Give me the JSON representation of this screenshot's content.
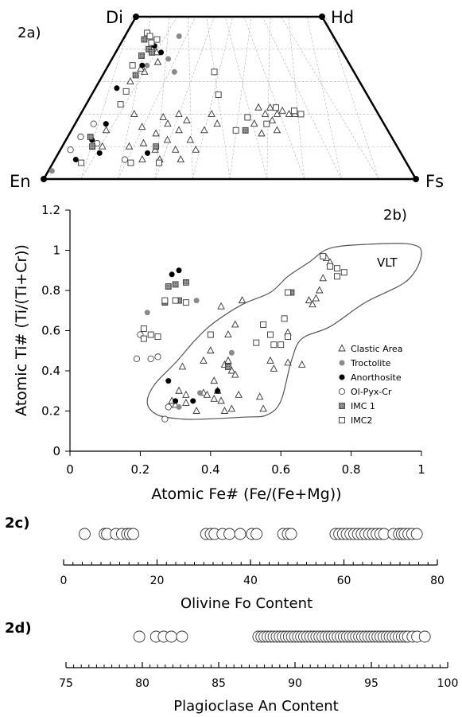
{
  "panel_a": {
    "label": "2a)",
    "vertices": {
      "top_left": "Di",
      "top_right": "Hd",
      "bottom_left": "En",
      "bottom_right": "Fs"
    }
  },
  "panel_b": {
    "label": "2b)",
    "region_label": "VLT"
  },
  "panel_c": {
    "label": "2c)"
  },
  "panel_d": {
    "label": "2d)"
  },
  "chart_data": [
    {
      "type": "scatter",
      "panel": "2a",
      "subtype": "pyroxene quadrilateral (ternary)",
      "axes": [
        "En",
        "Fs",
        "Di",
        "Hd"
      ],
      "series": [
        {
          "name": "Clastic Area",
          "marker": "open-triangle",
          "points": [
            [
              0.18,
              0.4
            ],
            [
              0.22,
              0.32
            ],
            [
              0.28,
              0.38
            ],
            [
              0.3,
              0.34
            ],
            [
              0.33,
              0.4
            ],
            [
              0.27,
              0.28
            ],
            [
              0.34,
              0.3
            ],
            [
              0.36,
              0.36
            ],
            [
              0.38,
              0.24
            ],
            [
              0.2,
              0.2
            ],
            [
              0.24,
              0.22
            ],
            [
              0.28,
              0.18
            ],
            [
              0.34,
              0.18
            ],
            [
              0.4,
              0.18
            ],
            [
              0.42,
              0.3
            ],
            [
              0.31,
              0.24
            ],
            [
              0.25,
              0.12
            ],
            [
              0.3,
              0.12
            ],
            [
              0.36,
              0.12
            ],
            [
              0.6,
              0.44
            ],
            [
              0.62,
              0.4
            ],
            [
              0.64,
              0.44
            ],
            [
              0.66,
              0.4
            ],
            [
              0.68,
              0.42
            ],
            [
              0.7,
              0.4
            ],
            [
              0.72,
              0.4
            ],
            [
              0.58,
              0.34
            ],
            [
              0.64,
              0.36
            ],
            [
              0.6,
              0.28
            ],
            [
              0.65,
              0.3
            ],
            [
              0.44,
              0.4
            ],
            [
              0.46,
              0.34
            ],
            [
              0.16,
              0.66
            ],
            [
              0.18,
              0.78
            ],
            [
              0.2,
              0.72
            ],
            [
              0.12,
              0.6
            ],
            [
              0.14,
              0.68
            ],
            [
              0.11,
              0.3
            ],
            [
              0.12,
              0.2
            ]
          ]
        },
        {
          "name": "Troctolite",
          "marker": "grey-dot",
          "points": [
            [
              0.01,
              0.05
            ],
            [
              0.26,
              0.88
            ],
            [
              0.24,
              0.74
            ],
            [
              0.28,
              0.66
            ],
            [
              0.16,
              0.7
            ]
          ]
        },
        {
          "name": "Anorthosite",
          "marker": "black-dot",
          "points": [
            [
              0.16,
              0.82
            ],
            [
              0.2,
              0.78
            ],
            [
              0.14,
              0.7
            ],
            [
              0.1,
              0.34
            ],
            [
              0.08,
              0.24
            ],
            [
              0.12,
              0.16
            ],
            [
              0.06,
              0.12
            ],
            [
              0.26,
              0.16
            ],
            [
              0.08,
              0.56
            ]
          ]
        },
        {
          "name": "Ol-Pyx-Cr",
          "marker": "open-circle",
          "points": [
            [
              0.04,
              0.26
            ],
            [
              0.06,
              0.34
            ],
            [
              0.03,
              0.18
            ],
            [
              0.2,
              0.12
            ],
            [
              0.1,
              0.22
            ]
          ]
        },
        {
          "name": "IMC 1",
          "marker": "grey-square",
          "points": [
            [
              0.1,
              0.86
            ],
            [
              0.12,
              0.76
            ],
            [
              0.14,
              0.8
            ],
            [
              0.16,
              0.78
            ],
            [
              0.13,
              0.64
            ],
            [
              0.07,
              0.26
            ],
            [
              0.09,
              0.2
            ],
            [
              0.28,
              0.2
            ],
            [
              0.55,
              0.3
            ]
          ]
        },
        {
          "name": "IMC2",
          "marker": "open-square",
          "points": [
            [
              0.1,
              0.9
            ],
            [
              0.12,
              0.88
            ],
            [
              0.14,
              0.84
            ],
            [
              0.16,
              0.86
            ],
            [
              0.1,
              0.7
            ],
            [
              0.12,
              0.54
            ],
            [
              0.12,
              0.46
            ],
            [
              0.3,
              0.1
            ],
            [
              0.22,
              0.1
            ],
            [
              0.44,
              0.66
            ],
            [
              0.46,
              0.52
            ],
            [
              0.52,
              0.3
            ],
            [
              0.56,
              0.38
            ],
            [
              0.62,
              0.34
            ],
            [
              0.66,
              0.44
            ],
            [
              0.72,
              0.42
            ],
            [
              0.74,
              0.4
            ],
            [
              0.08,
              0.1
            ]
          ]
        }
      ]
    },
    {
      "type": "scatter",
      "panel": "2b",
      "xlabel": "Atomic Fe# (Fe/(Fe+Mg))",
      "ylabel": "Atomic Ti# (Ti/(Ti+Cr))",
      "xlim": [
        0,
        1
      ],
      "ylim": [
        0,
        1.2
      ],
      "xticks": [
        "0",
        "0.2",
        "0.4",
        "0.6",
        "0.8",
        "1"
      ],
      "yticks": [
        "0",
        "0.2",
        "0.4",
        "0.6",
        "0.8",
        "1",
        "1.2"
      ],
      "legend_position": "right",
      "series": [
        {
          "name": "Clastic Area",
          "marker": "open-triangle",
          "points": [
            [
              0.3,
              0.23
            ],
            [
              0.29,
              0.25
            ],
            [
              0.32,
              0.42
            ],
            [
              0.33,
              0.28
            ],
            [
              0.36,
              0.2
            ],
            [
              0.38,
              0.29
            ],
            [
              0.39,
              0.28
            ],
            [
              0.41,
              0.26
            ],
            [
              0.42,
              0.3
            ],
            [
              0.41,
              0.35
            ],
            [
              0.43,
              0.25
            ],
            [
              0.44,
              0.43
            ],
            [
              0.45,
              0.45
            ],
            [
              0.46,
              0.4
            ],
            [
              0.47,
              0.38
            ],
            [
              0.48,
              0.28
            ],
            [
              0.45,
              0.58
            ],
            [
              0.47,
              0.63
            ],
            [
              0.49,
              0.75
            ],
            [
              0.43,
              0.72
            ],
            [
              0.38,
              0.45
            ],
            [
              0.4,
              0.5
            ],
            [
              0.44,
              0.2
            ],
            [
              0.46,
              0.21
            ],
            [
              0.54,
              0.27
            ],
            [
              0.55,
              0.21
            ],
            [
              0.58,
              0.41
            ],
            [
              0.62,
              0.44
            ],
            [
              0.66,
              0.43
            ],
            [
              0.68,
              0.75
            ],
            [
              0.69,
              0.73
            ],
            [
              0.7,
              0.76
            ],
            [
              0.71,
              0.8
            ],
            [
              0.72,
              0.86
            ],
            [
              0.73,
              0.96
            ],
            [
              0.74,
              0.94
            ],
            [
              0.31,
              0.3
            ],
            [
              0.33,
              0.24
            ],
            [
              0.57,
              0.45
            ],
            [
              0.62,
              0.59
            ]
          ]
        },
        {
          "name": "Troctolite",
          "marker": "grey-dot",
          "points": [
            [
              0.22,
              0.69
            ],
            [
              0.36,
              0.75
            ],
            [
              0.37,
              0.29
            ],
            [
              0.31,
              0.22
            ],
            [
              0.46,
              0.49
            ]
          ]
        },
        {
          "name": "Anorthosite",
          "marker": "black-dot",
          "points": [
            [
              0.29,
              0.88
            ],
            [
              0.31,
              0.9
            ],
            [
              0.3,
              0.83
            ],
            [
              0.28,
              0.35
            ],
            [
              0.3,
              0.25
            ],
            [
              0.35,
              0.25
            ],
            [
              0.42,
              0.3
            ],
            [
              0.63,
              0.79
            ]
          ]
        },
        {
          "name": "Ol-Pyx-Cr",
          "marker": "open-circle",
          "points": [
            [
              0.19,
              0.46
            ],
            [
              0.23,
              0.46
            ],
            [
              0.27,
              0.16
            ],
            [
              0.28,
              0.22
            ],
            [
              0.2,
              0.58
            ],
            [
              0.25,
              0.47
            ]
          ]
        },
        {
          "name": "IMC 1",
          "marker": "grey-square",
          "points": [
            [
              0.28,
              0.82
            ],
            [
              0.3,
              0.83
            ],
            [
              0.33,
              0.84
            ],
            [
              0.27,
              0.74
            ],
            [
              0.31,
              0.75
            ],
            [
              0.45,
              0.42
            ],
            [
              0.63,
              0.79
            ]
          ]
        },
        {
          "name": "IMC2",
          "marker": "open-square",
          "points": [
            [
              0.21,
              0.61
            ],
            [
              0.23,
              0.58
            ],
            [
              0.25,
              0.57
            ],
            [
              0.21,
              0.56
            ],
            [
              0.3,
              0.75
            ],
            [
              0.33,
              0.74
            ],
            [
              0.27,
              0.75
            ],
            [
              0.4,
              0.58
            ],
            [
              0.53,
              0.54
            ],
            [
              0.55,
              0.63
            ],
            [
              0.57,
              0.58
            ],
            [
              0.58,
              0.53
            ],
            [
              0.6,
              0.53
            ],
            [
              0.61,
              0.66
            ],
            [
              0.62,
              0.57
            ],
            [
              0.72,
              0.97
            ],
            [
              0.74,
              0.92
            ],
            [
              0.76,
              0.91
            ],
            [
              0.76,
              0.87
            ],
            [
              0.78,
              0.89
            ],
            [
              0.62,
              0.79
            ]
          ]
        }
      ],
      "region": {
        "name": "VLT",
        "outline": [
          [
            0.25,
            0.18
          ],
          [
            0.32,
            0.16
          ],
          [
            0.38,
            0.16
          ],
          [
            0.5,
            0.17
          ],
          [
            0.56,
            0.18
          ],
          [
            0.6,
            0.25
          ],
          [
            0.63,
            0.45
          ],
          [
            0.66,
            0.56
          ],
          [
            0.74,
            0.62
          ],
          [
            0.84,
            0.74
          ],
          [
            0.96,
            0.85
          ],
          [
            1.0,
            0.98
          ],
          [
            0.97,
            1.03
          ],
          [
            0.85,
            1.03
          ],
          [
            0.74,
            1.01
          ],
          [
            0.68,
            0.94
          ],
          [
            0.62,
            0.87
          ],
          [
            0.57,
            0.79
          ],
          [
            0.49,
            0.73
          ],
          [
            0.41,
            0.64
          ],
          [
            0.36,
            0.56
          ],
          [
            0.3,
            0.44
          ],
          [
            0.24,
            0.33
          ],
          [
            0.22,
            0.24
          ]
        ]
      }
    },
    {
      "type": "scatter",
      "panel": "2c",
      "xlabel": "Olivine Fo Content",
      "xlim": [
        0,
        80
      ],
      "xticks": [
        "0",
        "20",
        "40",
        "60",
        "80"
      ],
      "values": [
        4.5,
        8.8,
        9.3,
        11.2,
        12.5,
        13.6,
        14.2,
        14.9,
        30.5,
        31.5,
        32.3,
        34.0,
        35.5,
        37.8,
        40.3,
        41.3,
        47.0,
        48.0,
        48.7,
        58.2,
        59.0,
        59.8,
        60.6,
        61.4,
        62.2,
        63.0,
        63.8,
        64.6,
        65.4,
        66.2,
        67.0,
        67.8,
        68.6,
        70.6,
        71.8,
        72.4,
        73.0,
        73.8,
        74.6,
        75.6
      ]
    },
    {
      "type": "scatter",
      "panel": "2d",
      "xlabel": "Plagioclase An Content",
      "xlim": [
        75,
        100
      ],
      "xticks": [
        "75",
        "80",
        "85",
        "90",
        "95",
        "100"
      ],
      "values": [
        79.8,
        80.9,
        81.4,
        81.9,
        82.6,
        87.6,
        87.8,
        88.0,
        88.2,
        88.4,
        88.6,
        88.8,
        89.0,
        89.2,
        89.4,
        89.6,
        89.8,
        90.0,
        90.2,
        90.4,
        90.6,
        90.8,
        91.0,
        91.2,
        91.4,
        91.6,
        91.8,
        92.0,
        92.2,
        92.4,
        92.6,
        92.8,
        93.0,
        93.2,
        93.4,
        93.6,
        93.8,
        94.0,
        94.2,
        94.4,
        94.6,
        94.8,
        95.0,
        95.2,
        95.4,
        95.6,
        95.8,
        96.0,
        96.2,
        96.4,
        96.6,
        96.8,
        97.0,
        97.2,
        97.4,
        97.7,
        98.0,
        98.5
      ]
    }
  ]
}
